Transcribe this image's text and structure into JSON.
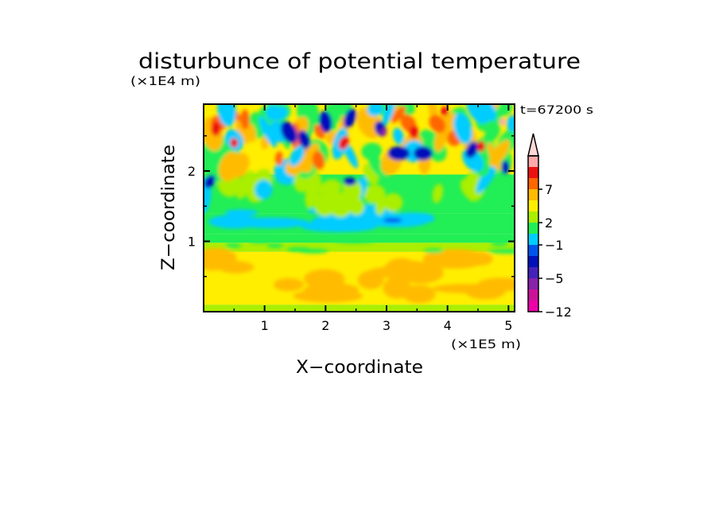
{
  "chart_data": {
    "type": "heatmap",
    "title": "disturbunce of potential temperature",
    "xlabel": "X−coordinate",
    "ylabel": "Z−coordinate",
    "x_unit": "(×1E5 m)",
    "y_unit": "(×1E4 m)",
    "time_label": "t=67200 s",
    "xlim": [
      0,
      5.1
    ],
    "ylim": [
      0,
      2.95
    ],
    "x_ticks": [
      1,
      2,
      3,
      4,
      5
    ],
    "y_ticks": [
      1,
      2
    ],
    "grid": false,
    "legend_placement": "right",
    "colorbar": {
      "colors": [
        "#ee00aa",
        "#cc1199",
        "#8822aa",
        "#4422bb",
        "#0011bb",
        "#0055ee",
        "#00ccff",
        "#22ee55",
        "#aaee00",
        "#ffee00",
        "#ffbb00",
        "#ff6600",
        "#ee1111",
        "#ffaaaa"
      ],
      "overflow_color": "#ffd8d8",
      "tick_labels": [
        "7",
        "2",
        "−1",
        "−5",
        "−12"
      ]
    },
    "field_description": "contoured values range roughly from −12 to above 7; mostly yellow/orange (0 to 2) near the bottom, bands of green/cyan (−1 to 0) near z=1, alternating red and blue anomalies in the upper layer"
  }
}
